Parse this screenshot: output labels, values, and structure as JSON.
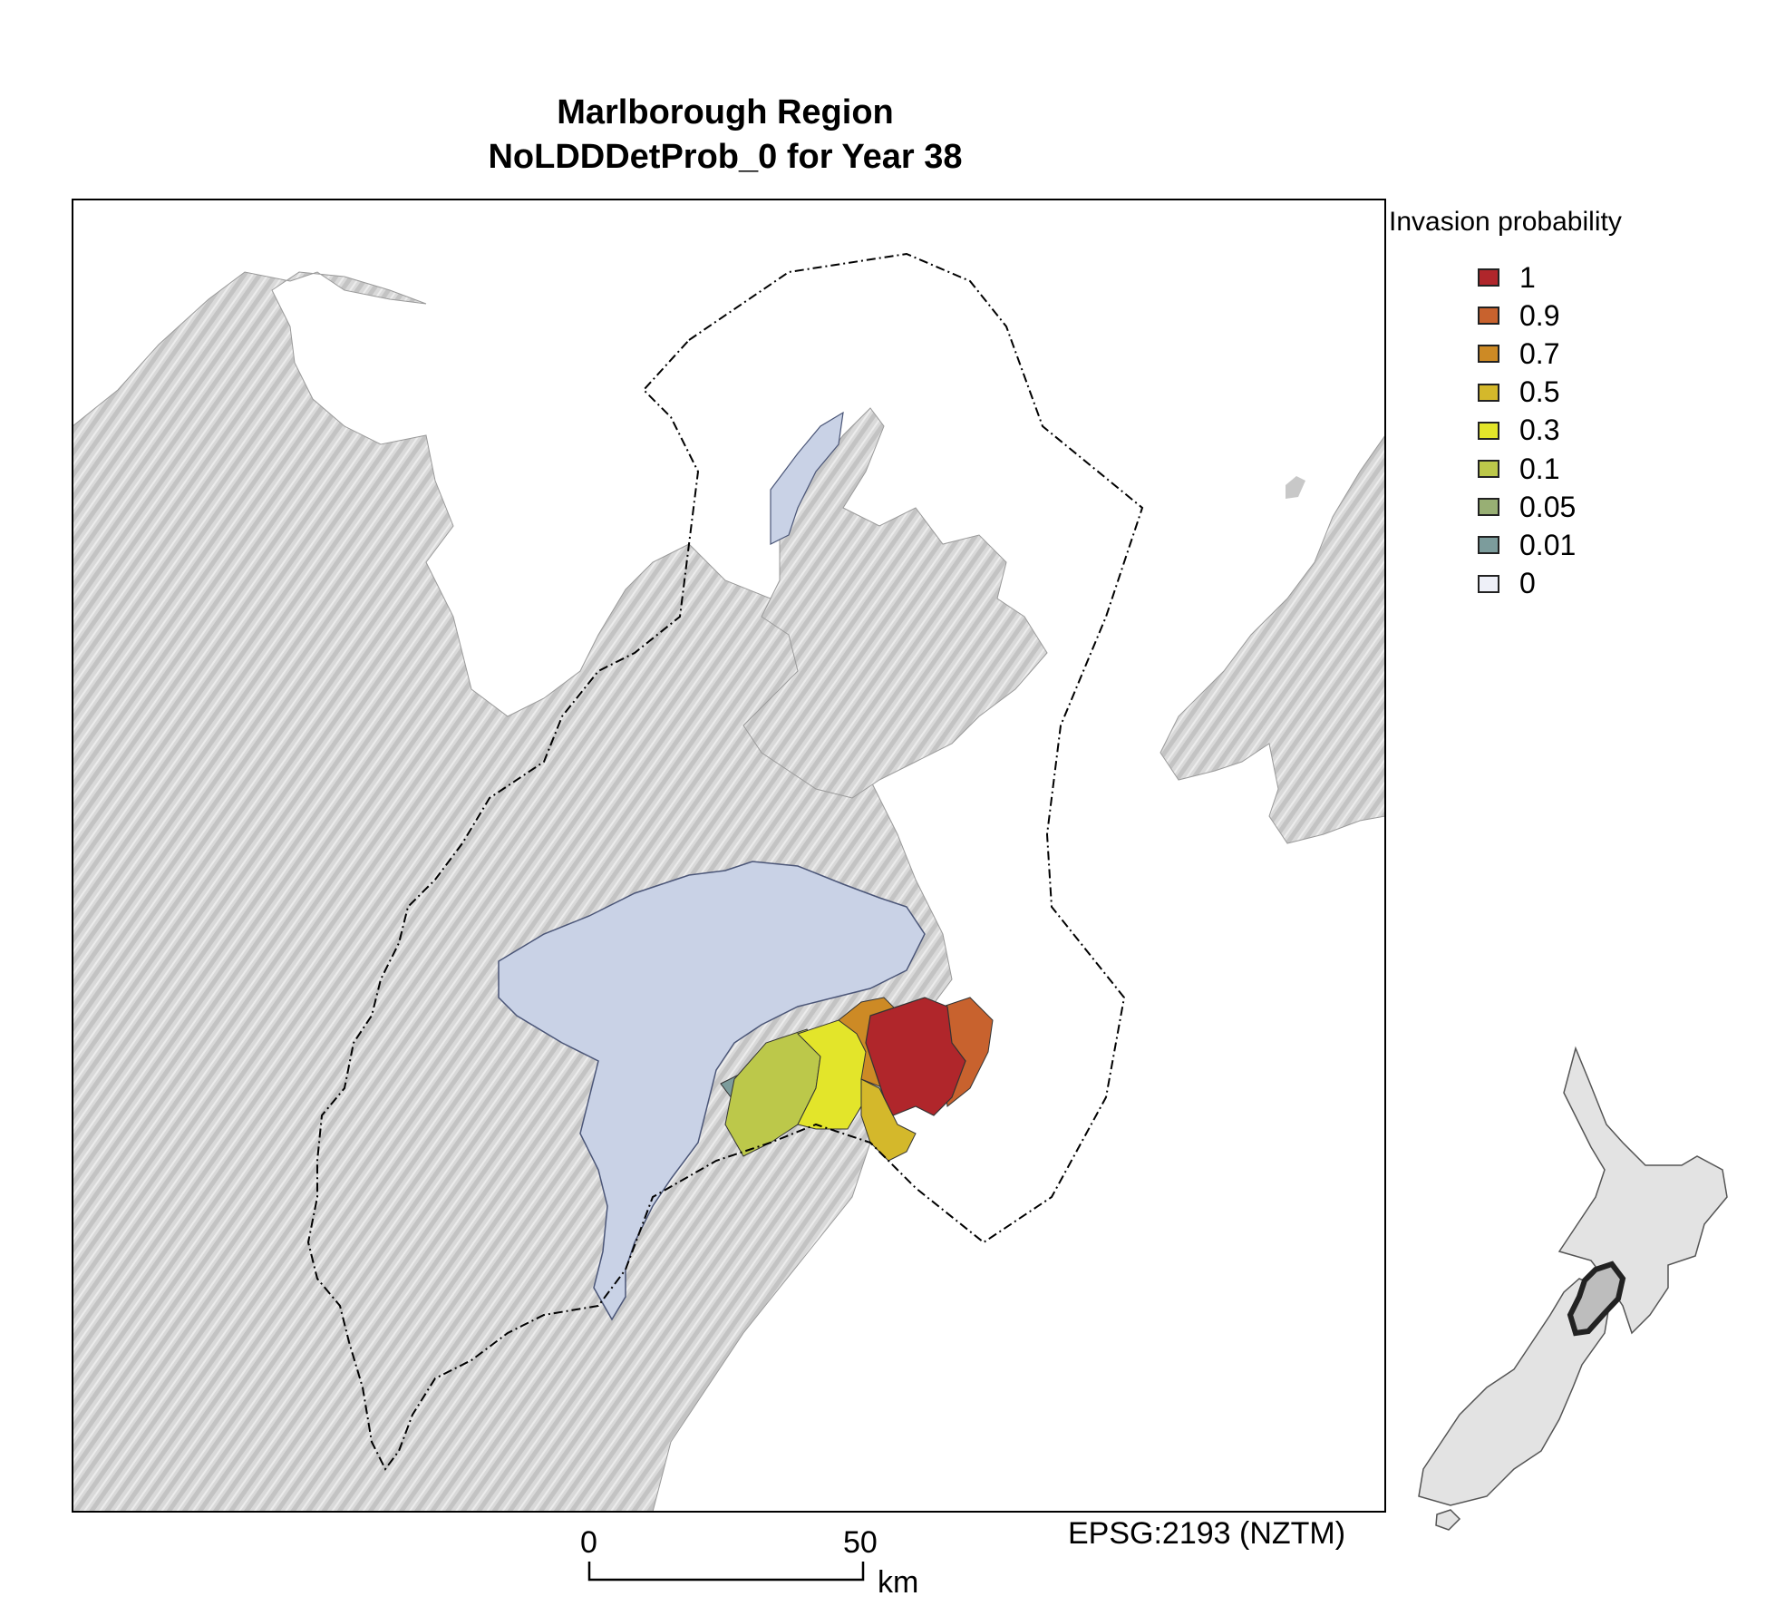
{
  "title": {
    "line1": "Marlborough Region",
    "line2": "NoLDDDetProb_0 for Year 38"
  },
  "legend": {
    "title": "Invasion probability",
    "items": [
      {
        "label": "1",
        "color": "#b0262b"
      },
      {
        "label": "0.9",
        "color": "#c8622e"
      },
      {
        "label": "0.7",
        "color": "#cd8a25"
      },
      {
        "label": "0.5",
        "color": "#d4b82b"
      },
      {
        "label": "0.3",
        "color": "#e3e52a"
      },
      {
        "label": "0.1",
        "color": "#bcc84a"
      },
      {
        "label": "0.05",
        "color": "#98af74"
      },
      {
        "label": "0.01",
        "color": "#7c9c9c"
      },
      {
        "label": "0",
        "color": "#eef0f8"
      }
    ]
  },
  "scalebar": {
    "start_label": "0",
    "end_label": "50",
    "unit": "km"
  },
  "crs": "EPSG:2193 (NZTM)",
  "colors": {
    "land": "#d7d7d7",
    "zero_area": "#c9d2e6",
    "inset_land": "#e3e3e3"
  }
}
